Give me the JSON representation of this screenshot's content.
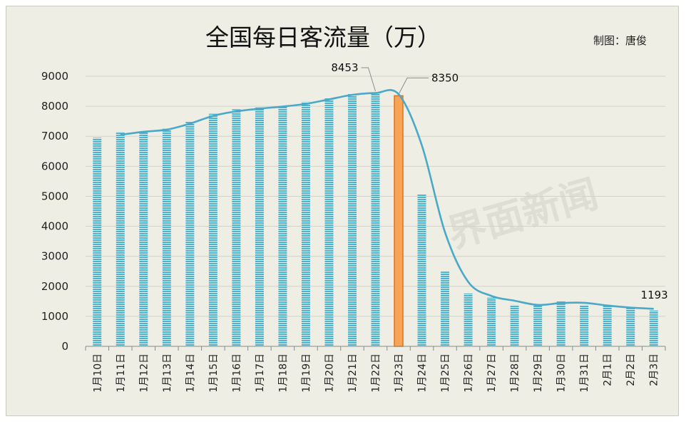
{
  "chart_data": {
    "type": "bar",
    "title": "全国每日客流量（万）",
    "credit": "制图：唐俊",
    "watermark": "界面新闻",
    "categories": [
      "1月10日",
      "1月11日",
      "1月12日",
      "1月13日",
      "1月14日",
      "1月15日",
      "1月16日",
      "1月17日",
      "1月18日",
      "1月19日",
      "1月20日",
      "1月21日",
      "1月22日",
      "1月23日",
      "1月24日",
      "1月25日",
      "1月26日",
      "1月27日",
      "1月28日",
      "1月29日",
      "1月30日",
      "1月31日",
      "2月1日",
      "2月2日",
      "2月3日"
    ],
    "values": [
      6950,
      7150,
      7150,
      7250,
      7480,
      7750,
      7900,
      7960,
      8000,
      8150,
      8280,
      8420,
      8453,
      8350,
      5060,
      2490,
      1760,
      1620,
      1380,
      1370,
      1500,
      1380,
      1380,
      1310,
      1193
    ],
    "trend": [
      null,
      7050,
      7150,
      7220,
      7420,
      7680,
      7830,
      7920,
      7990,
      8080,
      8230,
      8380,
      8440,
      8400,
      6700,
      3800,
      2150,
      1680,
      1520,
      1380,
      1440,
      1450,
      1360,
      1290,
      1250
    ],
    "highlight_index": 13,
    "ylim": [
      0,
      9000
    ],
    "yticks": [
      "0",
      "1000",
      "2000",
      "3000",
      "4000",
      "5000",
      "6000",
      "7000",
      "8000",
      "9000"
    ],
    "xlabel": "",
    "ylabel": "",
    "grid": true,
    "annotations": [
      {
        "index": 12,
        "label": "8453"
      },
      {
        "index": 13,
        "label": "8350"
      },
      {
        "index": 24,
        "label": "1193"
      }
    ],
    "colors": {
      "bar": "#4fb2cc",
      "bar_stripe": "#e3f2f6",
      "highlight": "#f8a458",
      "highlight_stroke": "#e0721c",
      "line": "#4aa8c9",
      "grid": "#d2d2c8",
      "axis": "#8a8a8a"
    }
  }
}
